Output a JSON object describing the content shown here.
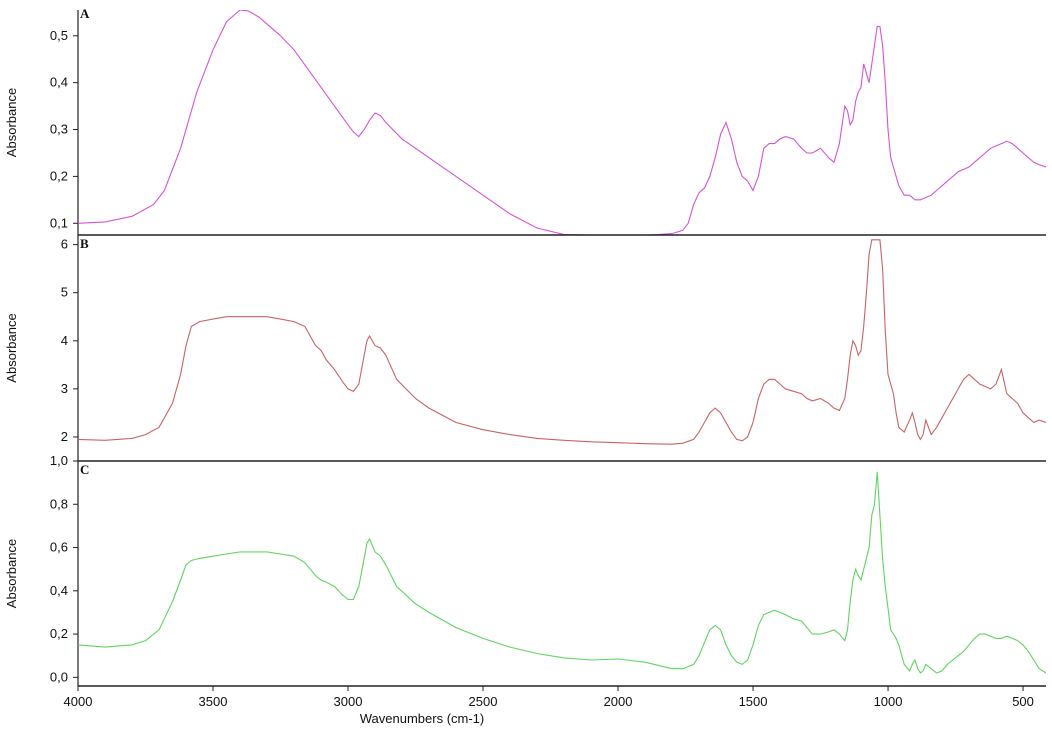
{
  "chart_data": [
    {
      "type": "line",
      "panel": "A",
      "ylabel": "Absorbance",
      "ylim": [
        0.075,
        0.555
      ],
      "yticks": [
        "0,1",
        "0,2",
        "0,3",
        "0,4",
        "0,5"
      ],
      "ytick_values": [
        0.1,
        0.2,
        0.3,
        0.4,
        0.5
      ],
      "xlim": [
        4000,
        415
      ],
      "color": "#d455d4",
      "x": [
        4000,
        3900,
        3800,
        3720,
        3680,
        3620,
        3560,
        3500,
        3450,
        3400,
        3370,
        3330,
        3300,
        3250,
        3200,
        3150,
        3100,
        3050,
        3000,
        2980,
        2960,
        2940,
        2920,
        2900,
        2880,
        2860,
        2800,
        2700,
        2600,
        2500,
        2400,
        2300,
        2200,
        2100,
        2000,
        1900,
        1850,
        1800,
        1760,
        1740,
        1720,
        1700,
        1680,
        1660,
        1640,
        1620,
        1600,
        1580,
        1560,
        1540,
        1520,
        1500,
        1480,
        1460,
        1440,
        1420,
        1400,
        1380,
        1350,
        1320,
        1300,
        1280,
        1250,
        1220,
        1200,
        1180,
        1160,
        1150,
        1140,
        1130,
        1120,
        1110,
        1100,
        1090,
        1080,
        1070,
        1060,
        1050,
        1040,
        1030,
        1020,
        1010,
        1000,
        990,
        980,
        970,
        960,
        950,
        940,
        920,
        900,
        880,
        860,
        840,
        820,
        800,
        780,
        760,
        740,
        720,
        700,
        680,
        660,
        640,
        620,
        600,
        580,
        560,
        540,
        520,
        500,
        480,
        460,
        440,
        415
      ],
      "y": [
        0.1,
        0.103,
        0.115,
        0.14,
        0.17,
        0.26,
        0.38,
        0.47,
        0.53,
        0.555,
        0.553,
        0.54,
        0.525,
        0.5,
        0.47,
        0.43,
        0.39,
        0.35,
        0.31,
        0.295,
        0.285,
        0.3,
        0.32,
        0.335,
        0.33,
        0.315,
        0.28,
        0.24,
        0.2,
        0.16,
        0.12,
        0.09,
        0.076,
        0.075,
        0.075,
        0.075,
        0.076,
        0.078,
        0.085,
        0.1,
        0.14,
        0.165,
        0.175,
        0.2,
        0.24,
        0.29,
        0.315,
        0.28,
        0.23,
        0.2,
        0.19,
        0.17,
        0.2,
        0.26,
        0.27,
        0.27,
        0.28,
        0.285,
        0.28,
        0.26,
        0.25,
        0.25,
        0.26,
        0.24,
        0.23,
        0.27,
        0.35,
        0.34,
        0.31,
        0.32,
        0.36,
        0.38,
        0.39,
        0.44,
        0.42,
        0.4,
        0.44,
        0.48,
        0.52,
        0.52,
        0.48,
        0.4,
        0.3,
        0.24,
        0.22,
        0.2,
        0.18,
        0.17,
        0.16,
        0.16,
        0.15,
        0.15,
        0.155,
        0.16,
        0.17,
        0.18,
        0.19,
        0.2,
        0.21,
        0.215,
        0.22,
        0.23,
        0.24,
        0.25,
        0.26,
        0.265,
        0.27,
        0.275,
        0.27,
        0.26,
        0.25,
        0.24,
        0.23,
        0.225,
        0.22
      ]
    },
    {
      "type": "line",
      "panel": "B",
      "ylabel": "Absorbance",
      "ylim": [
        1.5,
        6.2
      ],
      "yticks": [
        "2",
        "3",
        "4",
        "5",
        "6"
      ],
      "ytick_values": [
        2,
        3,
        4,
        5,
        6
      ],
      "xlim": [
        4000,
        415
      ],
      "color": "#c86464",
      "x": [
        4000,
        3900,
        3800,
        3750,
        3700,
        3650,
        3620,
        3600,
        3580,
        3550,
        3500,
        3450,
        3400,
        3350,
        3300,
        3250,
        3200,
        3160,
        3140,
        3120,
        3100,
        3080,
        3050,
        3020,
        3000,
        2980,
        2960,
        2940,
        2930,
        2920,
        2900,
        2880,
        2860,
        2820,
        2750,
        2700,
        2600,
        2500,
        2400,
        2300,
        2200,
        2100,
        2000,
        1900,
        1800,
        1760,
        1720,
        1700,
        1680,
        1660,
        1640,
        1620,
        1600,
        1580,
        1560,
        1540,
        1520,
        1500,
        1480,
        1460,
        1440,
        1420,
        1400,
        1380,
        1350,
        1320,
        1300,
        1280,
        1250,
        1220,
        1200,
        1180,
        1160,
        1150,
        1140,
        1130,
        1120,
        1110,
        1100,
        1090,
        1080,
        1070,
        1060,
        1050,
        1040,
        1030,
        1020,
        1010,
        1000,
        990,
        980,
        970,
        960,
        940,
        920,
        910,
        900,
        890,
        880,
        870,
        860,
        840,
        820,
        800,
        780,
        760,
        740,
        720,
        700,
        680,
        660,
        640,
        620,
        600,
        580,
        560,
        540,
        520,
        500,
        480,
        460,
        440,
        415
      ],
      "y": [
        1.95,
        1.93,
        1.97,
        2.05,
        2.2,
        2.7,
        3.3,
        3.9,
        4.3,
        4.4,
        4.45,
        4.5,
        4.5,
        4.5,
        4.5,
        4.45,
        4.4,
        4.3,
        4.1,
        3.9,
        3.8,
        3.6,
        3.4,
        3.15,
        3.0,
        2.95,
        3.1,
        3.7,
        4.0,
        4.1,
        3.9,
        3.85,
        3.7,
        3.2,
        2.8,
        2.6,
        2.3,
        2.15,
        2.05,
        1.97,
        1.93,
        1.9,
        1.88,
        1.86,
        1.85,
        1.87,
        1.95,
        2.1,
        2.3,
        2.5,
        2.6,
        2.5,
        2.3,
        2.1,
        1.95,
        1.92,
        2.0,
        2.3,
        2.8,
        3.1,
        3.2,
        3.2,
        3.1,
        3.0,
        2.95,
        2.9,
        2.8,
        2.75,
        2.8,
        2.7,
        2.6,
        2.55,
        2.8,
        3.2,
        3.7,
        4.0,
        3.9,
        3.7,
        3.8,
        4.3,
        5.0,
        5.8,
        6.1,
        6.1,
        6.1,
        6.1,
        5.5,
        4.2,
        3.3,
        3.1,
        2.9,
        2.5,
        2.2,
        2.1,
        2.35,
        2.5,
        2.3,
        2.05,
        1.95,
        2.05,
        2.35,
        2.05,
        2.2,
        2.4,
        2.6,
        2.8,
        3.0,
        3.2,
        3.3,
        3.2,
        3.1,
        3.05,
        3.0,
        3.1,
        3.4,
        2.9,
        2.8,
        2.7,
        2.5,
        2.4,
        2.3,
        2.35,
        2.3
      ]
    },
    {
      "type": "line",
      "panel": "C",
      "ylabel": "Absorbance",
      "xlabel": "Wavenumbers (cm-1)",
      "ylim": [
        -0.04,
        1.0
      ],
      "yticks": [
        "0,0",
        "0,2",
        "0,4",
        "0,6",
        "0,8",
        "1,0"
      ],
      "ytick_values": [
        0.0,
        0.2,
        0.4,
        0.6,
        0.8,
        1.0
      ],
      "xlim": [
        4000,
        415
      ],
      "xticks": [
        "4000",
        "3500",
        "3000",
        "2500",
        "2000",
        "1500",
        "1000",
        "500"
      ],
      "xtick_values": [
        4000,
        3500,
        3000,
        2500,
        2000,
        1500,
        1000,
        500
      ],
      "color": "#5fd45f",
      "x": [
        4000,
        3900,
        3800,
        3750,
        3700,
        3650,
        3620,
        3600,
        3580,
        3550,
        3500,
        3450,
        3400,
        3350,
        3300,
        3250,
        3200,
        3160,
        3140,
        3120,
        3100,
        3080,
        3050,
        3020,
        3000,
        2980,
        2960,
        2940,
        2930,
        2920,
        2900,
        2880,
        2860,
        2820,
        2750,
        2700,
        2600,
        2500,
        2400,
        2300,
        2200,
        2100,
        2000,
        1900,
        1800,
        1760,
        1720,
        1700,
        1680,
        1660,
        1640,
        1620,
        1600,
        1580,
        1560,
        1540,
        1520,
        1500,
        1480,
        1460,
        1440,
        1420,
        1400,
        1380,
        1350,
        1320,
        1300,
        1280,
        1250,
        1220,
        1200,
        1180,
        1160,
        1150,
        1140,
        1130,
        1120,
        1110,
        1100,
        1090,
        1080,
        1070,
        1060,
        1050,
        1040,
        1030,
        1020,
        1010,
        1000,
        990,
        980,
        970,
        960,
        940,
        920,
        910,
        900,
        890,
        880,
        870,
        860,
        840,
        820,
        800,
        780,
        760,
        740,
        720,
        700,
        680,
        660,
        640,
        620,
        600,
        580,
        560,
        540,
        520,
        500,
        480,
        460,
        440,
        415
      ],
      "y": [
        0.15,
        0.14,
        0.15,
        0.17,
        0.22,
        0.35,
        0.45,
        0.52,
        0.54,
        0.55,
        0.56,
        0.57,
        0.58,
        0.58,
        0.58,
        0.57,
        0.56,
        0.53,
        0.5,
        0.47,
        0.45,
        0.44,
        0.42,
        0.38,
        0.36,
        0.36,
        0.42,
        0.55,
        0.62,
        0.64,
        0.58,
        0.56,
        0.52,
        0.42,
        0.34,
        0.3,
        0.23,
        0.18,
        0.14,
        0.11,
        0.09,
        0.08,
        0.085,
        0.07,
        0.04,
        0.04,
        0.06,
        0.1,
        0.16,
        0.22,
        0.24,
        0.22,
        0.15,
        0.1,
        0.07,
        0.06,
        0.08,
        0.15,
        0.24,
        0.29,
        0.3,
        0.31,
        0.3,
        0.29,
        0.27,
        0.26,
        0.23,
        0.2,
        0.2,
        0.21,
        0.22,
        0.2,
        0.17,
        0.22,
        0.35,
        0.45,
        0.5,
        0.47,
        0.45,
        0.5,
        0.55,
        0.6,
        0.75,
        0.8,
        0.95,
        0.75,
        0.55,
        0.42,
        0.32,
        0.22,
        0.2,
        0.18,
        0.15,
        0.06,
        0.03,
        0.06,
        0.08,
        0.04,
        0.02,
        0.03,
        0.06,
        0.04,
        0.02,
        0.03,
        0.06,
        0.08,
        0.1,
        0.12,
        0.15,
        0.18,
        0.2,
        0.2,
        0.19,
        0.18,
        0.18,
        0.19,
        0.18,
        0.17,
        0.15,
        0.12,
        0.08,
        0.04,
        0.02
      ]
    }
  ]
}
